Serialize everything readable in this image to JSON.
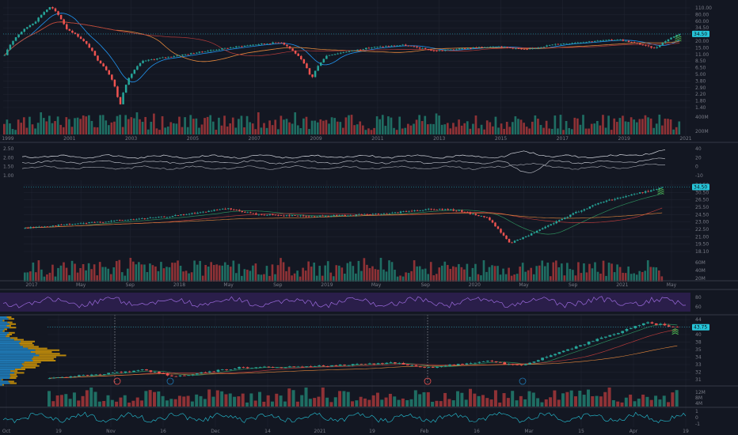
{
  "theme": {
    "background": "#131722",
    "grid": "#222633",
    "separator": "#363a45",
    "up": "#26a69a",
    "down": "#ef5350",
    "vol_up": "#1f6e63",
    "vol_down": "#8f3236",
    "ma_blue": "#2196f3",
    "ma_orange": "#e8893c",
    "ma_red": "#b23a3a",
    "ma_green": "#2d8c5c",
    "rsi_band": "#2a1e4a",
    "rsi_line": "#9c6ade",
    "signal_green": "#4caf50",
    "tag_cyan": "#26c6da",
    "tag_gray": "#5d606b",
    "volume_profile_blue": "#1f78b4",
    "volume_profile_orange": "#b8860b"
  },
  "chart_data": [
    {
      "panel": "weekly-long-term",
      "type": "candlestick",
      "x_ticks": [
        "1999",
        "2001",
        "2003",
        "2005",
        "2007",
        "2009",
        "2011",
        "2013",
        "2015",
        "2017",
        "2019",
        "2021"
      ],
      "y_ticks": [
        "110.00",
        "80.00",
        "60.00",
        "34.50",
        "26.00",
        "20.00",
        "15.00",
        "11.00",
        "8.50",
        "6.50",
        "5.00",
        "3.80",
        "2.90",
        "2.20",
        "1.80",
        "1.40"
      ],
      "y_scale": "log",
      "ylim": [
        1.3,
        125
      ],
      "close_path": [
        [
          1999,
          14
        ],
        [
          2000,
          60
        ],
        [
          2000.5,
          115
        ],
        [
          2001,
          45
        ],
        [
          2002,
          12
        ],
        [
          2002.75,
          1.4
        ],
        [
          2003.5,
          11
        ],
        [
          2005,
          15
        ],
        [
          2007,
          22
        ],
        [
          2008,
          25
        ],
        [
          2009,
          5
        ],
        [
          2009.5,
          14
        ],
        [
          2011,
          20
        ],
        [
          2012,
          22
        ],
        [
          2013,
          17
        ],
        [
          2015,
          21
        ],
        [
          2016,
          18
        ],
        [
          2017,
          23
        ],
        [
          2019,
          28
        ],
        [
          2020.2,
          19
        ],
        [
          2021,
          36
        ]
      ],
      "last_price": "34.50",
      "volume_ticks": [
        "400M",
        "200M"
      ]
    },
    {
      "panel": "ratio-oscillator",
      "type": "line",
      "y_ticks": [
        "2.50",
        "2.00",
        "1.50",
        "1.00"
      ],
      "right_ticks": [
        "40",
        "20",
        "0",
        "-10"
      ]
    },
    {
      "panel": "daily-mid-term",
      "type": "candlestick",
      "x_ticks": [
        "2017",
        "May",
        "Sep",
        "2018",
        "May",
        "Sep",
        "2019",
        "May",
        "Sep",
        "2020",
        "May",
        "Sep",
        "2021",
        "May"
      ],
      "y_ticks": [
        "34.50",
        "30.50",
        "26.50",
        "25.50",
        "24.50",
        "23.00",
        "22.50",
        "21.00",
        "19.50",
        "18.10"
      ],
      "ylim": [
        17.5,
        36.5
      ],
      "close_path": [
        [
          2017.0,
          24.5
        ],
        [
          2018.0,
          27.5
        ],
        [
          2018.4,
          29.5
        ],
        [
          2018.6,
          28.0
        ],
        [
          2019.0,
          27.5
        ],
        [
          2019.5,
          28.2
        ],
        [
          2019.8,
          29.5
        ],
        [
          2020.0,
          29.0
        ],
        [
          2020.2,
          27.0
        ],
        [
          2020.35,
          20.5
        ],
        [
          2020.5,
          23.0
        ],
        [
          2020.8,
          28.5
        ],
        [
          2021.0,
          31.5
        ],
        [
          2021.4,
          35.0
        ]
      ],
      "last_price": "34.50",
      "volume_ticks": [
        "60M",
        "40M",
        "20M"
      ]
    },
    {
      "panel": "rsi",
      "type": "line",
      "y_ticks": [
        "80",
        "60"
      ]
    },
    {
      "panel": "daily-short-term",
      "type": "candlestick",
      "x_ticks": [
        "Oct",
        "19",
        "Nov",
        "16",
        "Dec",
        "14",
        "2021",
        "19",
        "Feb",
        "16",
        "Mar",
        "15",
        "Apr",
        "19"
      ],
      "y_ticks": [
        "44",
        "42",
        "40",
        "38",
        "35",
        "34",
        "33",
        "32",
        "31"
      ],
      "ylim": [
        30.5,
        46
      ],
      "close_path": [
        [
          0,
          31.5
        ],
        [
          0.15,
          33.5
        ],
        [
          0.2,
          32.0
        ],
        [
          0.3,
          34.0
        ],
        [
          0.45,
          34.5
        ],
        [
          0.55,
          35.2
        ],
        [
          0.6,
          34.0
        ],
        [
          0.7,
          35.5
        ],
        [
          0.75,
          34.5
        ],
        [
          0.82,
          38.0
        ],
        [
          0.9,
          42.0
        ],
        [
          0.95,
          44.5
        ],
        [
          1.0,
          43.5
        ]
      ],
      "last_price": "43.75",
      "volume_ticks": [
        "12M",
        "8M",
        "4M"
      ],
      "oscillator_ticks": [
        "1",
        "0",
        "-1"
      ]
    }
  ]
}
